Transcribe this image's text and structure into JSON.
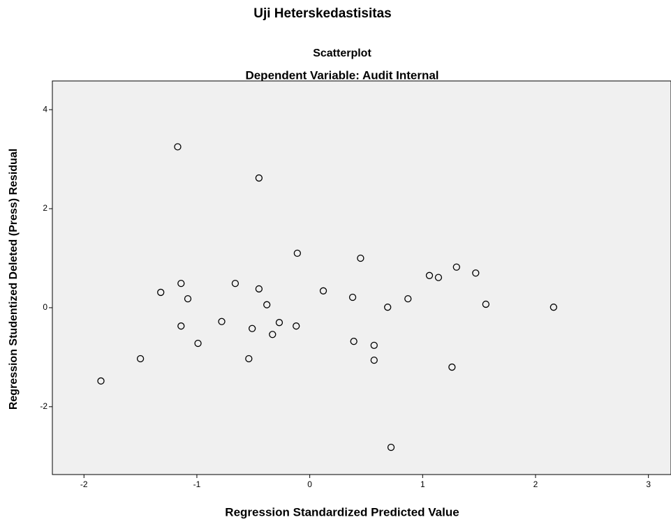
{
  "heading": "Uji Heterskedastisitas",
  "chart_data": {
    "type": "scatter",
    "title": "Scatterplot",
    "subtitle": "Dependent Variable: Audit Internal",
    "x_label": "Regression Standardized Predicted Value",
    "y_label": "Regression Studentized Deleted (Press) Residual",
    "x": [
      -1.17,
      -0.45,
      -0.11,
      0.45,
      -1.32,
      -1.14,
      -1.08,
      -0.66,
      -0.45,
      -0.38,
      0.12,
      0.38,
      0.69,
      0.87,
      1.06,
      1.14,
      1.3,
      1.47,
      1.56,
      2.16,
      -1.14,
      -0.78,
      -0.51,
      -0.27,
      -0.12,
      -0.33,
      -0.99,
      -1.5,
      -0.54,
      0.39,
      0.57,
      0.57,
      1.26,
      -1.85,
      0.72
    ],
    "values": [
      3.25,
      2.62,
      1.1,
      1.0,
      0.31,
      0.49,
      0.18,
      0.49,
      0.38,
      0.06,
      0.34,
      0.21,
      0.01,
      0.18,
      0.65,
      0.61,
      0.82,
      0.7,
      0.07,
      0.01,
      -0.37,
      -0.28,
      -0.42,
      -0.3,
      -0.37,
      -0.54,
      -0.72,
      -1.03,
      -1.03,
      -0.68,
      -0.76,
      -1.06,
      -1.2,
      -1.48,
      -2.82
    ],
    "xlim": [
      -2.28,
      3.2
    ],
    "ylim": [
      -3.37,
      4.58
    ],
    "xticks": [
      -2,
      -1,
      0,
      1,
      2,
      3
    ],
    "yticks": [
      -2,
      0,
      2,
      4
    ],
    "background": "#f0f0f0",
    "marker_color": "#000000"
  }
}
